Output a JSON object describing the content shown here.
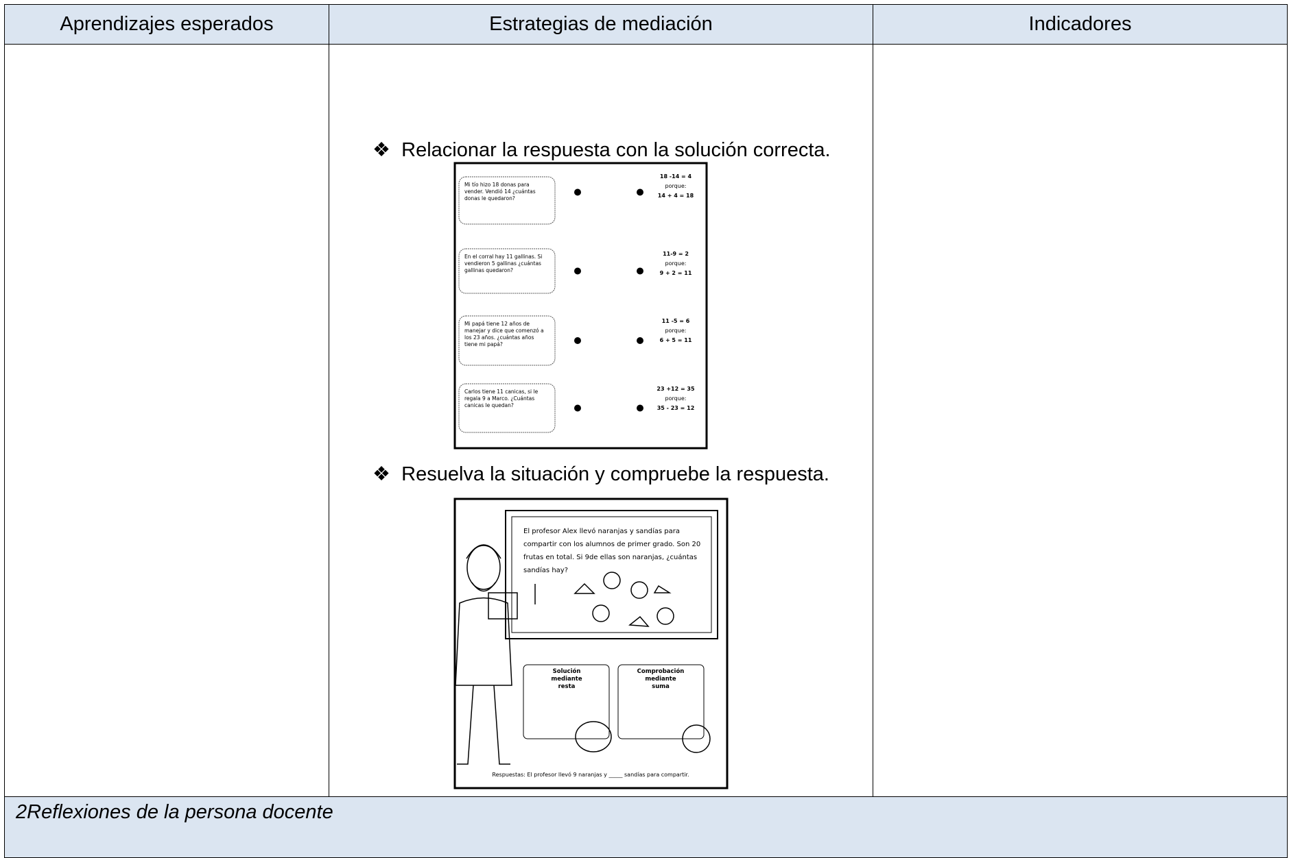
{
  "table": {
    "headers": [
      "Aprendizajes esperados",
      "Estrategias de mediación",
      "Indicadores"
    ],
    "bullets": [
      "Relacionar la respuesta con la solución correcta.",
      "Resuelva la situación y compruebe la respuesta."
    ],
    "footer": "2Reflexiones de la persona docente"
  },
  "worksheet_1": {
    "problems": [
      [
        "Mi tío hizo 18 donas para",
        "vender. Vendió 14 ¿cuántas",
        "donas le quedaron?"
      ],
      [
        "En el corral hay 11 gallinas. Si",
        "vendieron 5 gallinas ¿cuántas",
        "gallinas quedaron?"
      ],
      [
        "Mi papá tiene 12 años de",
        "manejar y dice que comenzó a",
        "los 23 años. ¿cuántas años",
        "tiene mi papá?"
      ],
      [
        "Carlos tiene 11 canicas, si le",
        "regala 9 a Marco. ¿Cuántas",
        "canicas le quedan?"
      ]
    ],
    "answers": [
      {
        "equation": "18 -14 = 4",
        "reason": "porque:",
        "check": "14 + 4 = 18"
      },
      {
        "equation": "11-9 = 2",
        "reason": "porque:",
        "check": "9 + 2 = 11"
      },
      {
        "equation": "11 -5 = 6",
        "reason": "porque:",
        "check": "6 + 5 = 11"
      },
      {
        "equation": "23 +12 = 35",
        "reason": "porque:",
        "check": "35 - 23 = 12"
      }
    ]
  },
  "worksheet_2": {
    "problem": [
      "El profesor Alex llevó naranjas y sandías para",
      "compartir con los alumnos de primer grado. Son 20",
      "frutas en total.  Si 9de ellas son naranjas, ¿cuántas",
      "sandías hay?"
    ],
    "boxes": [
      [
        "Solución",
        "mediante",
        "resta"
      ],
      [
        "Comprobación",
        "mediante",
        "suma"
      ]
    ],
    "answer": "Respuestas: El profesor llevó 9 naranjas y _____ sandías para compartir."
  }
}
